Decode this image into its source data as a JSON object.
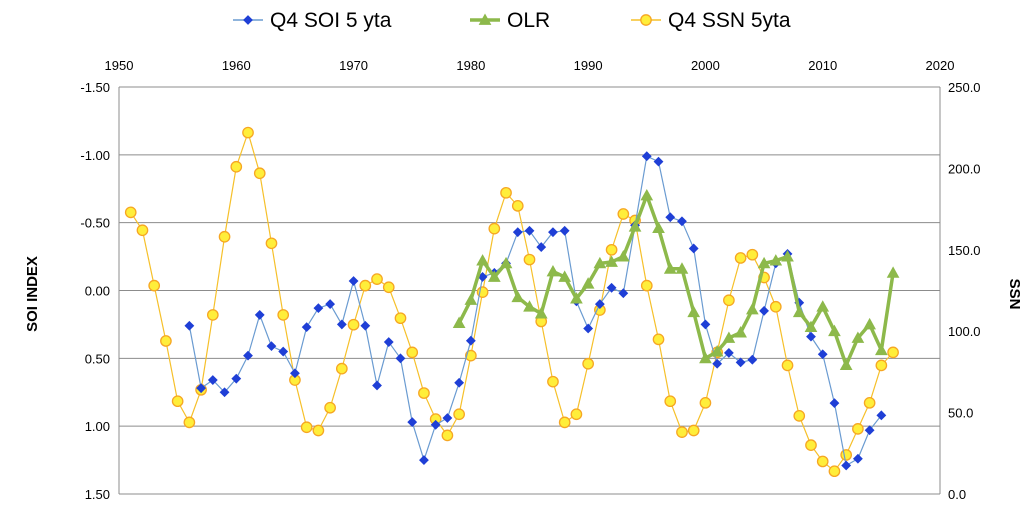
{
  "chart_data": {
    "type": "line",
    "title": "",
    "x_axis": {
      "min": 1950,
      "max": 2020,
      "step": 10,
      "ticks": [
        "1950",
        "1960",
        "1970",
        "1980",
        "1990",
        "2000",
        "2010",
        "2020"
      ],
      "position": "top"
    },
    "y_left": {
      "label": "SOI INDEX",
      "min": -1.5,
      "max": 1.5,
      "step": 0.5,
      "inverted": true,
      "ticks": [
        "-1.50",
        "-1.00",
        "-0.50",
        "0.00",
        "0.50",
        "1.00",
        "1.50"
      ]
    },
    "y_right": {
      "label": "SSN",
      "min": 0,
      "max": 250,
      "step": 50,
      "ticks": [
        "0.0",
        "50.0",
        "100.0",
        "150.0",
        "200.0",
        "250.0"
      ]
    },
    "grid": "horizontal",
    "legend_position": "top",
    "series": [
      {
        "name": "Q4 SOI 5 yta",
        "axis": "left",
        "color": "#1f3fd6",
        "line_color": "#6a9bd1",
        "marker": "diamond",
        "x": [
          1956,
          1957,
          1958,
          1959,
          1960,
          1961,
          1962,
          1963,
          1964,
          1965,
          1966,
          1967,
          1968,
          1969,
          1970,
          1971,
          1972,
          1973,
          1974,
          1975,
          1976,
          1977,
          1978,
          1979,
          1980,
          1981,
          1982,
          1983,
          1984,
          1985,
          1986,
          1987,
          1988,
          1989,
          1990,
          1991,
          1992,
          1993,
          1994,
          1995,
          1996,
          1997,
          1998,
          1999,
          2000,
          2001,
          2002,
          2003,
          2004,
          2005,
          2006,
          2007,
          2008,
          2009,
          2010,
          2011,
          2012,
          2013,
          2014,
          2015
        ],
        "y": [
          0.26,
          0.72,
          0.66,
          0.75,
          0.65,
          0.48,
          0.18,
          0.41,
          0.45,
          0.61,
          0.27,
          0.13,
          0.1,
          0.25,
          -0.07,
          0.26,
          0.7,
          0.38,
          0.5,
          0.97,
          1.25,
          0.99,
          0.94,
          0.68,
          0.37,
          -0.1,
          -0.13,
          -0.2,
          -0.43,
          -0.44,
          -0.32,
          -0.43,
          -0.44,
          0.08,
          0.28,
          0.1,
          -0.02,
          0.02,
          -0.48,
          -0.99,
          -0.95,
          -0.54,
          -0.51,
          -0.31,
          0.25,
          0.54,
          0.46,
          0.53,
          0.51,
          0.15,
          -0.2,
          -0.27,
          0.09,
          0.34,
          0.47,
          0.83,
          1.29,
          1.24,
          1.03,
          0.92
        ]
      },
      {
        "name": "OLR",
        "axis": "left",
        "color": "#8db94b",
        "line_color": "#8db94b",
        "marker": "triangle",
        "x": [
          1979,
          1980,
          1981,
          1982,
          1983,
          1984,
          1985,
          1986,
          1987,
          1988,
          1989,
          1990,
          1991,
          1992,
          1993,
          1994,
          1995,
          1996,
          1997,
          1998,
          1999,
          2000,
          2001,
          2002,
          2003,
          2004,
          2005,
          2006,
          2007,
          2008,
          2009,
          2010,
          2011,
          2012,
          2013,
          2014,
          2015,
          2016
        ],
        "y": [
          0.24,
          0.07,
          -0.22,
          -0.1,
          -0.2,
          0.05,
          0.12,
          0.17,
          -0.14,
          -0.1,
          0.06,
          -0.05,
          -0.2,
          -0.21,
          -0.25,
          -0.47,
          -0.7,
          -0.46,
          -0.16,
          -0.16,
          0.16,
          0.5,
          0.45,
          0.35,
          0.31,
          0.14,
          -0.2,
          -0.22,
          -0.25,
          0.16,
          0.27,
          0.12,
          0.3,
          0.55,
          0.35,
          0.25,
          0.44,
          -0.13
        ]
      },
      {
        "name": "Q4 SSN 5yta",
        "axis": "right",
        "color": "#f6a623",
        "line_color": "#f6c02a",
        "fill": "#ffee3a",
        "marker": "circle",
        "x": [
          1951,
          1952,
          1953,
          1954,
          1955,
          1956,
          1957,
          1958,
          1959,
          1960,
          1961,
          1962,
          1963,
          1964,
          1965,
          1966,
          1967,
          1968,
          1969,
          1970,
          1971,
          1972,
          1973,
          1974,
          1975,
          1976,
          1977,
          1978,
          1979,
          1980,
          1981,
          1982,
          1983,
          1984,
          1985,
          1986,
          1987,
          1988,
          1989,
          1990,
          1991,
          1992,
          1993,
          1994,
          1995,
          1996,
          1997,
          1998,
          1999,
          2000,
          2001,
          2002,
          2003,
          2004,
          2005,
          2006,
          2007,
          2008,
          2009,
          2010,
          2011,
          2012,
          2013,
          2014,
          2015,
          2016
        ],
        "y": [
          173,
          162,
          128,
          94,
          57,
          44,
          64,
          110,
          158,
          201,
          222,
          197,
          154,
          110,
          70,
          41,
          39,
          53,
          77,
          104,
          128,
          132,
          127,
          108,
          87,
          62,
          46,
          36,
          49,
          85,
          124,
          163,
          185,
          177,
          144,
          106,
          69,
          44,
          49,
          80,
          113,
          150,
          172,
          168,
          128,
          95,
          57,
          38,
          39,
          56,
          87,
          119,
          145,
          147,
          133,
          115,
          79,
          48,
          30,
          20,
          14,
          24,
          40,
          56,
          79,
          87
        ]
      }
    ]
  }
}
